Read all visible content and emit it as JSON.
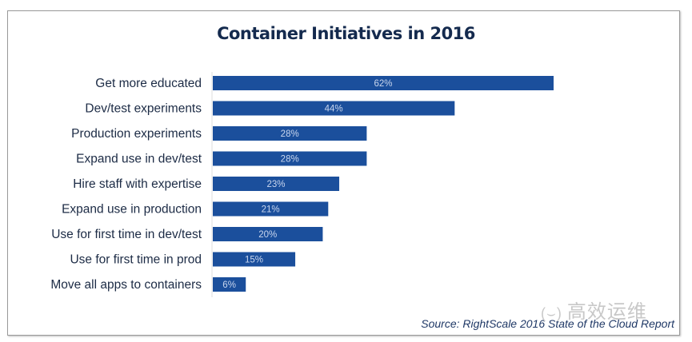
{
  "chart_data": {
    "type": "bar",
    "orientation": "horizontal",
    "title": "Container Initiatives in 2016",
    "categories": [
      "Get more educated",
      "Dev/test experiments",
      "Production experiments",
      "Expand use in dev/test",
      "Hire staff with expertise",
      "Expand use in production",
      "Use for first time in dev/test",
      "Use for first time in prod",
      "Move all apps to containers"
    ],
    "values": [
      62,
      44,
      28,
      28,
      23,
      21,
      20,
      15,
      6
    ],
    "data_labels": [
      "62%",
      "44%",
      "28%",
      "28%",
      "23%",
      "21%",
      "20%",
      "15%",
      "6%"
    ],
    "xlim": [
      0,
      62
    ],
    "grid": false,
    "bar_color": "#1b4f9c",
    "label_color": "#c9d6ee",
    "source": "Source: RightScale 2016 State of the Cloud Report"
  },
  "watermark": "高效运维"
}
